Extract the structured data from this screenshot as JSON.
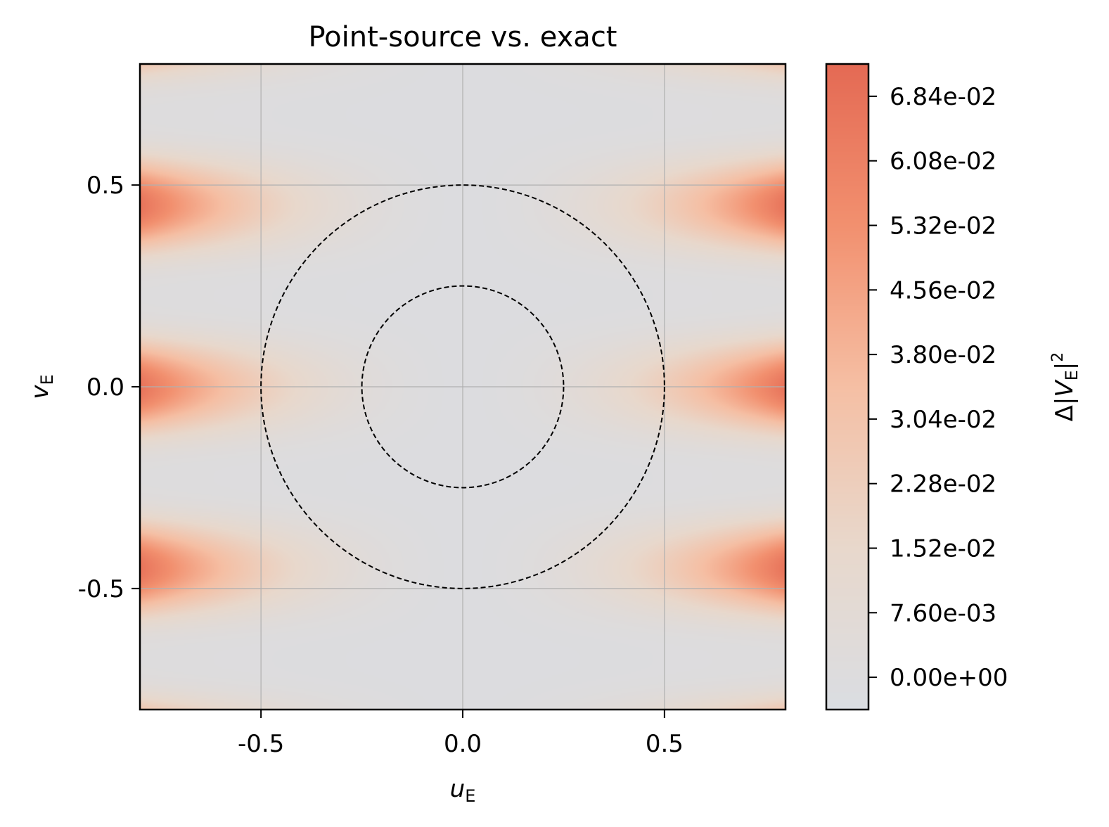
{
  "chart_data": {
    "type": "heatmap",
    "title": "Point-source vs. exact",
    "xlabel": {
      "main": "u",
      "sub": "E"
    },
    "ylabel": {
      "main": "v",
      "sub": "E"
    },
    "colorbar_label": {
      "prefix": "Δ|",
      "main": "V",
      "sub": "E",
      "suffix": "|",
      "sup": "2"
    },
    "xlim": [
      -0.8,
      0.8
    ],
    "ylim": [
      -0.8,
      0.8
    ],
    "x_ticks": [
      -0.5,
      0.0,
      0.5
    ],
    "x_tick_labels": [
      "-0.5",
      "0.0",
      "0.5"
    ],
    "y_ticks": [
      -0.5,
      0.0,
      0.5
    ],
    "y_tick_labels": [
      "-0.5",
      "0.0",
      "0.5"
    ],
    "grid": true,
    "colorbar": {
      "range": [
        -0.0038,
        0.0722
      ],
      "ticks": [
        0.0,
        0.0076,
        0.0152,
        0.0228,
        0.0304,
        0.038,
        0.0456,
        0.0532,
        0.0608,
        0.0684
      ],
      "tick_labels": [
        "0.00e+00",
        "7.60e-03",
        "1.52e-02",
        "2.28e-02",
        "3.04e-02",
        "3.80e-02",
        "4.56e-02",
        "5.32e-02",
        "6.08e-02",
        "6.84e-02"
      ],
      "colormap": [
        "#dadde2",
        "#e8d8cc",
        "#f5bfa4",
        "#f2906f",
        "#e46a54"
      ]
    },
    "overlays": [
      {
        "type": "circle",
        "center": [
          0,
          0
        ],
        "radius": 0.5,
        "style": "dashed",
        "color": "#000000"
      },
      {
        "type": "circle",
        "center": [
          0,
          0
        ],
        "radius": 0.25,
        "style": "dashed",
        "color": "#000000"
      }
    ],
    "field_description_peaks": [
      {
        "u": -0.8,
        "v": 0.45,
        "value": 0.068
      },
      {
        "u": -0.8,
        "v": 0.0,
        "value": 0.068
      },
      {
        "u": -0.8,
        "v": -0.45,
        "value": 0.068
      },
      {
        "u": 0.8,
        "v": 0.45,
        "value": 0.068
      },
      {
        "u": 0.8,
        "v": 0.0,
        "value": 0.068
      },
      {
        "u": 0.8,
        "v": -0.45,
        "value": 0.068
      }
    ]
  }
}
